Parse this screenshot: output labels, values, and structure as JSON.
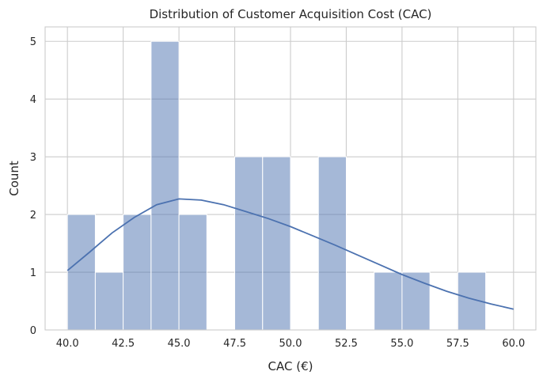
{
  "chart_data": {
    "type": "histogram",
    "title": "Distribution of Customer Acquisition Cost (CAC)",
    "xlabel": "CAC (€)",
    "ylabel": "Count",
    "xlim": [
      39.0,
      61.0
    ],
    "ylim": [
      0,
      5.25
    ],
    "bin_width": 1.25,
    "bins": [
      {
        "start": 40.0,
        "end": 41.25,
        "count": 2
      },
      {
        "start": 41.25,
        "end": 42.5,
        "count": 1
      },
      {
        "start": 42.5,
        "end": 43.75,
        "count": 2
      },
      {
        "start": 43.75,
        "end": 45.0,
        "count": 5
      },
      {
        "start": 45.0,
        "end": 46.25,
        "count": 2
      },
      {
        "start": 46.25,
        "end": 47.5,
        "count": 0
      },
      {
        "start": 47.5,
        "end": 48.75,
        "count": 3
      },
      {
        "start": 48.75,
        "end": 50.0,
        "count": 3
      },
      {
        "start": 50.0,
        "end": 51.25,
        "count": 0
      },
      {
        "start": 51.25,
        "end": 52.5,
        "count": 3
      },
      {
        "start": 52.5,
        "end": 53.75,
        "count": 0
      },
      {
        "start": 53.75,
        "end": 55.0,
        "count": 1
      },
      {
        "start": 55.0,
        "end": 56.25,
        "count": 1
      },
      {
        "start": 56.25,
        "end": 57.5,
        "count": 0
      },
      {
        "start": 57.5,
        "end": 58.75,
        "count": 1
      }
    ],
    "kde": {
      "x": [
        40.0,
        41.0,
        42.0,
        43.0,
        44.0,
        45.0,
        46.0,
        47.0,
        48.0,
        49.0,
        50.0,
        51.0,
        52.0,
        53.0,
        54.0,
        55.0,
        56.0,
        57.0,
        58.0,
        59.0,
        60.0
      ],
      "y": [
        1.03,
        1.35,
        1.68,
        1.95,
        2.17,
        2.27,
        2.25,
        2.17,
        2.05,
        1.93,
        1.79,
        1.63,
        1.47,
        1.3,
        1.13,
        0.96,
        0.81,
        0.67,
        0.55,
        0.45,
        0.36
      ]
    },
    "x_ticks": [
      "40.0",
      "42.5",
      "45.0",
      "47.5",
      "50.0",
      "52.5",
      "55.0",
      "57.5",
      "60.0"
    ],
    "y_ticks": [
      "0",
      "1",
      "2",
      "3",
      "4",
      "5"
    ],
    "grid": true,
    "colors": {
      "bar": "#4c72b0",
      "line": "#4c72b0",
      "grid": "#cccccc"
    }
  }
}
